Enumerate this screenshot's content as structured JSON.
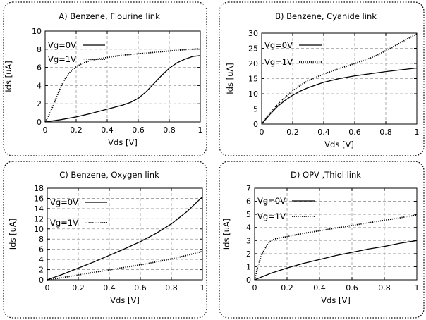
{
  "chart_data": [
    {
      "type": "line",
      "title": "A) Benzene, Flourine link",
      "xlabel": "Vds [V]",
      "ylabel": "Ids [uA]",
      "xlim": [
        0,
        1
      ],
      "ylim": [
        0,
        10
      ],
      "xticks": [
        0,
        0.2,
        0.4,
        0.6,
        0.8,
        1
      ],
      "xtick_labels": [
        "0",
        "0.2",
        "0.4",
        "0.6",
        "0.8",
        "1"
      ],
      "yticks": [
        0,
        2,
        4,
        6,
        8,
        10
      ],
      "ytick_labels": [
        "0",
        "2",
        "4",
        "6",
        "8",
        "10"
      ],
      "grid": true,
      "legend_position": "top-left",
      "series": [
        {
          "name": "Vg=0V",
          "style": "solid",
          "x": [
            0,
            0.1,
            0.2,
            0.3,
            0.4,
            0.5,
            0.55,
            0.6,
            0.65,
            0.7,
            0.75,
            0.8,
            0.85,
            0.9,
            0.95,
            1.0
          ],
          "y": [
            0,
            0.25,
            0.55,
            0.95,
            1.4,
            1.85,
            2.15,
            2.6,
            3.3,
            4.2,
            5.1,
            5.9,
            6.5,
            6.9,
            7.2,
            7.3
          ]
        },
        {
          "name": "Vg=1V",
          "style": "dotted",
          "x": [
            0,
            0.02,
            0.05,
            0.08,
            0.1,
            0.12,
            0.15,
            0.2,
            0.25,
            0.3,
            0.4,
            0.5,
            0.6,
            0.7,
            0.8,
            0.9,
            1.0
          ],
          "y": [
            0,
            0.6,
            1.7,
            3.0,
            3.8,
            4.5,
            5.3,
            6.1,
            6.5,
            6.8,
            7.1,
            7.35,
            7.5,
            7.65,
            7.8,
            7.95,
            8.05
          ]
        }
      ]
    },
    {
      "type": "line",
      "title": "B) Benzene, Cyanide link",
      "xlabel": "Vds [V]",
      "ylabel": "Ids [uA]",
      "xlim": [
        0,
        1
      ],
      "ylim": [
        0,
        30
      ],
      "xticks": [
        0,
        0.2,
        0.4,
        0.6,
        0.8,
        1
      ],
      "xtick_labels": [
        "0",
        "0.2",
        "0.4",
        "0.6",
        "0.8",
        "1"
      ],
      "yticks": [
        0,
        5,
        10,
        15,
        20,
        25,
        30
      ],
      "ytick_labels": [
        "0",
        "5",
        "10",
        "15",
        "20",
        "25",
        "30"
      ],
      "grid": true,
      "legend_position": "top-left",
      "series": [
        {
          "name": "Vg=0V",
          "style": "solid",
          "x": [
            0,
            0.02,
            0.05,
            0.1,
            0.15,
            0.2,
            0.25,
            0.3,
            0.4,
            0.5,
            0.6,
            0.7,
            0.8,
            0.9,
            1.0
          ],
          "y": [
            0,
            1.2,
            3.0,
            5.7,
            7.8,
            9.5,
            10.9,
            12.0,
            13.8,
            15.0,
            15.9,
            16.6,
            17.3,
            17.9,
            18.5
          ]
        },
        {
          "name": "Vg=1V",
          "style": "dotted",
          "x": [
            0,
            0.02,
            0.05,
            0.1,
            0.15,
            0.2,
            0.25,
            0.3,
            0.4,
            0.5,
            0.6,
            0.7,
            0.75,
            0.8,
            0.85,
            0.9,
            0.95,
            1.0
          ],
          "y": [
            0,
            1.3,
            3.3,
            6.3,
            8.8,
            11.0,
            12.8,
            14.3,
            16.5,
            18.3,
            20.0,
            21.8,
            22.9,
            24.2,
            25.6,
            27.0,
            28.4,
            29.7
          ]
        }
      ]
    },
    {
      "type": "line",
      "title": "C) Benzene, Oxygen link",
      "xlabel": "Vds [V]",
      "ylabel": "Ids [uA]",
      "xlim": [
        0,
        1
      ],
      "ylim": [
        0,
        18
      ],
      "xticks": [
        0,
        0.2,
        0.4,
        0.6,
        0.8,
        1
      ],
      "xtick_labels": [
        "0",
        "0.2",
        "0.4",
        "0.6",
        "0.8",
        "1"
      ],
      "yticks": [
        0,
        2,
        4,
        6,
        8,
        10,
        12,
        14,
        16,
        18
      ],
      "ytick_labels": [
        "0",
        "2",
        "4",
        "6",
        "8",
        "10",
        "12",
        "14",
        "16",
        "18"
      ],
      "grid": true,
      "legend_position": "top-left",
      "series": [
        {
          "name": "Vg=0V",
          "style": "solid",
          "x": [
            0,
            0.1,
            0.2,
            0.3,
            0.4,
            0.5,
            0.6,
            0.7,
            0.8,
            0.9,
            1.0
          ],
          "y": [
            0,
            1.1,
            2.3,
            3.5,
            4.8,
            6.1,
            7.5,
            9.1,
            11.0,
            13.4,
            16.3
          ]
        },
        {
          "name": "Vg=1V",
          "style": "dotted",
          "x": [
            0,
            0.1,
            0.2,
            0.3,
            0.4,
            0.5,
            0.6,
            0.7,
            0.8,
            0.9,
            1.0
          ],
          "y": [
            0,
            0.45,
            0.95,
            1.45,
            1.95,
            2.45,
            2.95,
            3.5,
            4.1,
            4.8,
            5.6
          ]
        }
      ]
    },
    {
      "type": "line",
      "title": "D)  OPV   ,Thiol   link",
      "xlabel": "Vds [V]",
      "ylabel": "Ids [uA]",
      "xlim": [
        0,
        1
      ],
      "ylim": [
        0,
        7
      ],
      "xticks": [
        0,
        0.2,
        0.4,
        0.6,
        0.8,
        1
      ],
      "xtick_labels": [
        "0",
        "0.2",
        "0.4",
        "0.6",
        "0.8",
        "1"
      ],
      "yticks": [
        0,
        1,
        2,
        3,
        4,
        5,
        6,
        7
      ],
      "ytick_labels": [
        "0",
        "1",
        "2",
        "3",
        "4",
        "5",
        "6",
        "7"
      ],
      "grid": true,
      "legend_position": "top-left",
      "series": [
        {
          "name": "Vg=0V",
          "style": "solid",
          "x": [
            0,
            0.05,
            0.1,
            0.2,
            0.3,
            0.4,
            0.5,
            0.6,
            0.7,
            0.8,
            0.9,
            1.0
          ],
          "y": [
            0,
            0.25,
            0.5,
            0.9,
            1.25,
            1.55,
            1.85,
            2.1,
            2.35,
            2.55,
            2.8,
            3.0
          ]
        },
        {
          "name": "Vg=1V",
          "style": "dotted",
          "x": [
            0,
            0.02,
            0.04,
            0.06,
            0.08,
            0.1,
            0.12,
            0.15,
            0.2,
            0.3,
            0.4,
            0.5,
            0.6,
            0.7,
            0.8,
            0.9,
            1.0
          ],
          "y": [
            0,
            1.0,
            1.8,
            2.3,
            2.7,
            2.95,
            3.1,
            3.2,
            3.3,
            3.55,
            3.75,
            3.95,
            4.15,
            4.35,
            4.55,
            4.75,
            4.95
          ]
        }
      ]
    }
  ]
}
